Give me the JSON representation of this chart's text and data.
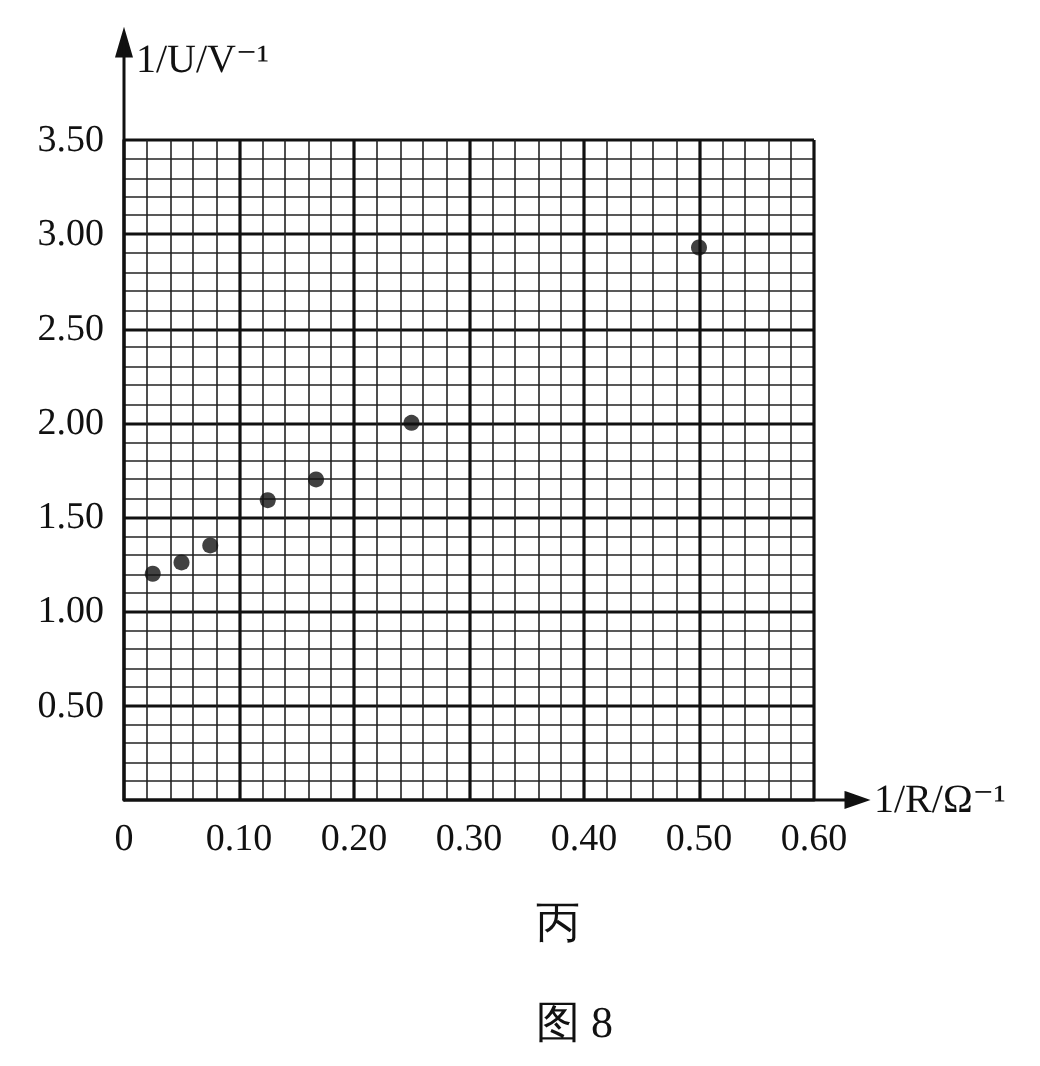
{
  "chart_data": {
    "type": "scatter",
    "xlabel": "1/R/Ω⁻¹",
    "ylabel": "1/U/V⁻¹",
    "x": [
      0.025,
      0.05,
      0.075,
      0.125,
      0.167,
      0.25,
      0.5
    ],
    "values": [
      1.2,
      1.26,
      1.35,
      1.59,
      1.7,
      2.0,
      2.93
    ],
    "color": "#111111",
    "marker": "circle",
    "grid": true,
    "xlim": [
      0,
      0.6
    ],
    "ylim": [
      0,
      3.5
    ],
    "xticks": [
      0,
      {
        "value": 0.1,
        "label": "0.10"
      },
      {
        "value": 0.2,
        "label": "0.20"
      },
      {
        "value": 0.3,
        "label": "0.30"
      },
      {
        "value": 0.4,
        "label": "0.40"
      },
      {
        "value": 0.5,
        "label": "0.50"
      },
      {
        "value": 0.6,
        "label": "0.60"
      }
    ],
    "yticks": [
      {
        "value": 0.5,
        "label": "0.50"
      },
      {
        "value": 1,
        "label": "1.00"
      },
      {
        "value": 1.5,
        "label": "1.50"
      },
      {
        "value": 2,
        "label": "2.00"
      },
      {
        "value": 2.5,
        "label": "2.50"
      },
      {
        "value": 3,
        "label": "3.00"
      },
      {
        "value": 3.5,
        "label": "3.50"
      }
    ],
    "annotations": [
      "丙",
      "图 8"
    ]
  }
}
